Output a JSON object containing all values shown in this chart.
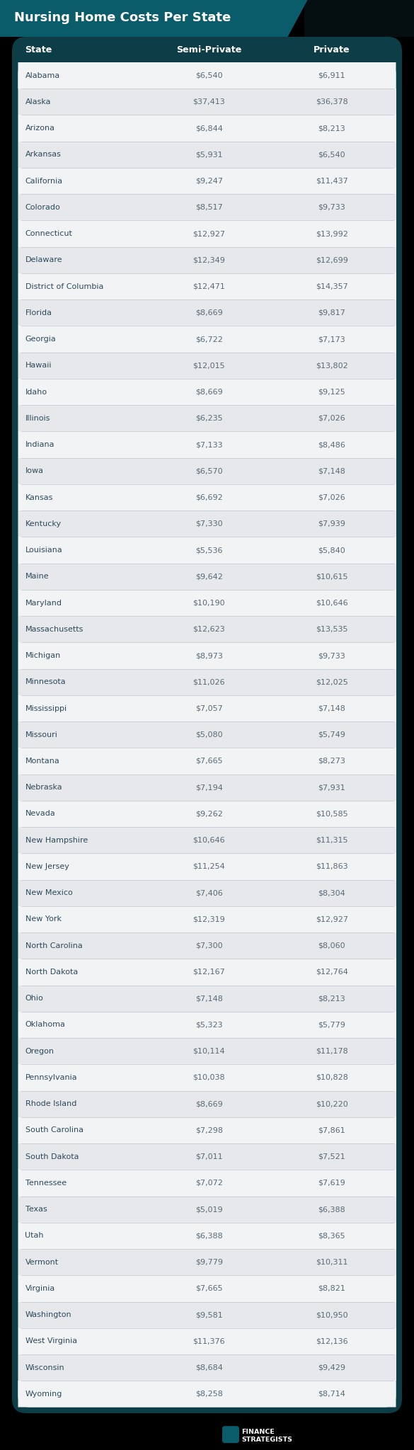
{
  "title": "Nursing Home Costs Per State",
  "header_bg": "#0a5c6b",
  "table_bg": "#0d3d47",
  "row_bg_light": "#f2f3f5",
  "row_bg_alt": "#e6e8eb",
  "inner_bg": "#f2f3f5",
  "header_text_color": "#ffffff",
  "state_text_color": "#2d4a5a",
  "value_text_color": "#5a6a75",
  "col_headers": [
    "State",
    "Semi-Private",
    "Private"
  ],
  "rows": [
    [
      "Alabama",
      "$6,540",
      "$6,911"
    ],
    [
      "Alaska",
      "$37,413",
      "$36,378"
    ],
    [
      "Arizona",
      "$6,844",
      "$8,213"
    ],
    [
      "Arkansas",
      "$5,931",
      "$6,540"
    ],
    [
      "California",
      "$9,247",
      "$11,437"
    ],
    [
      "Colorado",
      "$8,517",
      "$9,733"
    ],
    [
      "Connecticut",
      "$12,927",
      "$13,992"
    ],
    [
      "Delaware",
      "$12,349",
      "$12,699"
    ],
    [
      "District of Columbia",
      "$12,471",
      "$14,357"
    ],
    [
      "Florida",
      "$8,669",
      "$9,817"
    ],
    [
      "Georgia",
      "$6,722",
      "$7,173"
    ],
    [
      "Hawaii",
      "$12,015",
      "$13,802"
    ],
    [
      "Idaho",
      "$8,669",
      "$9,125"
    ],
    [
      "Illinois",
      "$6,235",
      "$7,026"
    ],
    [
      "Indiana",
      "$7,133",
      "$8,486"
    ],
    [
      "Iowa",
      "$6,570",
      "$7,148"
    ],
    [
      "Kansas",
      "$6,692",
      "$7,026"
    ],
    [
      "Kentucky",
      "$7,330",
      "$7,939"
    ],
    [
      "Louisiana",
      "$5,536",
      "$5,840"
    ],
    [
      "Maine",
      "$9,642",
      "$10,615"
    ],
    [
      "Maryland",
      "$10,190",
      "$10,646"
    ],
    [
      "Massachusetts",
      "$12,623",
      "$13,535"
    ],
    [
      "Michigan",
      "$8,973",
      "$9,733"
    ],
    [
      "Minnesota",
      "$11,026",
      "$12,025"
    ],
    [
      "Mississippi",
      "$7,057",
      "$7,148"
    ],
    [
      "Missouri",
      "$5,080",
      "$5,749"
    ],
    [
      "Montana",
      "$7,665",
      "$8,273"
    ],
    [
      "Nebraska",
      "$7,194",
      "$7,931"
    ],
    [
      "Nevada",
      "$9,262",
      "$10,585"
    ],
    [
      "New Hampshire",
      "$10,646",
      "$11,315"
    ],
    [
      "New Jersey",
      "$11,254",
      "$11,863"
    ],
    [
      "New Mexico",
      "$7,406",
      "$8,304"
    ],
    [
      "New York",
      "$12,319",
      "$12,927"
    ],
    [
      "North Carolina",
      "$7,300",
      "$8,060"
    ],
    [
      "North Dakota",
      "$12,167",
      "$12,764"
    ],
    [
      "Ohio",
      "$7,148",
      "$8,213"
    ],
    [
      "Oklahoma",
      "$5,323",
      "$5,779"
    ],
    [
      "Oregon",
      "$10,114",
      "$11,178"
    ],
    [
      "Pennsylvania",
      "$10,038",
      "$10,828"
    ],
    [
      "Rhode Island",
      "$8,669",
      "$10,220"
    ],
    [
      "South Carolina",
      "$7,298",
      "$7,861"
    ],
    [
      "South Dakota",
      "$7,011",
      "$7,521"
    ],
    [
      "Tennessee",
      "$7,072",
      "$7,619"
    ],
    [
      "Texas",
      "$5,019",
      "$6,388"
    ],
    [
      "Utah",
      "$6,388",
      "$8,365"
    ],
    [
      "Vermont",
      "$9,779",
      "$10,311"
    ],
    [
      "Virginia",
      "$7,665",
      "$8,821"
    ],
    [
      "Washington",
      "$9,581",
      "$10,950"
    ],
    [
      "West Virginia",
      "$11,376",
      "$12,136"
    ],
    [
      "Wisconsin",
      "$8,684",
      "$9,429"
    ],
    [
      "Wyoming",
      "$8,258",
      "$8,714"
    ]
  ]
}
